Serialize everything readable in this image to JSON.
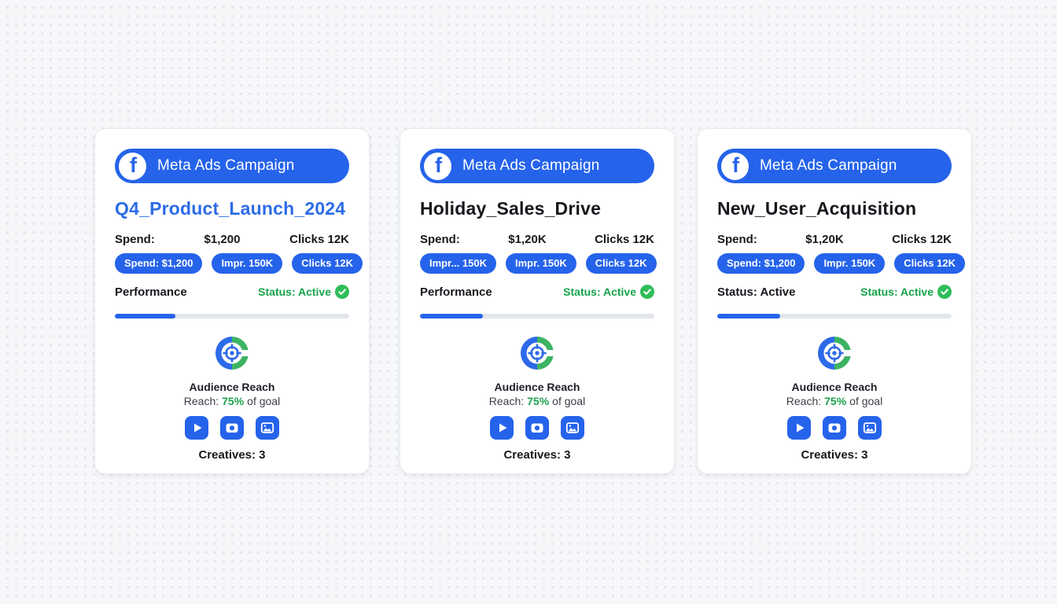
{
  "colors": {
    "accent_blue": "#2563eb",
    "title_blue": "#2c6be8",
    "status_green": "#16a34a",
    "check_green": "#2ebd59",
    "target_green": "#3cb363",
    "progress_track": "#e2e5ea",
    "page_background": "#f6f7f9"
  },
  "icons": {
    "facebook": "f glyph in white circle",
    "audience_target": "blue/green ring with crosshair",
    "play": "white triangle on blue rounded square",
    "camera": "white camera on blue rounded square",
    "image": "white picture frame on blue rounded square",
    "check": "white check in green circle"
  },
  "cards": [
    {
      "header_label": "Meta Ads Campaign",
      "title": "Q4_Product_Launch_2024",
      "stats_label": "Spend:",
      "stats_value": "$1,200",
      "stats_right": "Clicks 12K",
      "pills": [
        "Spend: $1,200",
        "Impr. 150K",
        "Clicks 12K"
      ],
      "row_left": "Performance",
      "status_text": "Status: Active",
      "progress_pct": 26,
      "reach_title": "Audience Reach",
      "reach_prefix": "Reach:",
      "reach_pct": "75%",
      "reach_suffix": "of goal",
      "creatives_label": "Creatives: 3"
    },
    {
      "header_label": "Meta Ads Campaign",
      "title": "Holiday_Sales_Drive",
      "stats_label": "Spend:",
      "stats_value": "$1,20K",
      "stats_right": "Clicks 12K",
      "pills": [
        "Impr... 150K",
        "Impr. 150K",
        "Clicks 12K"
      ],
      "row_left": "Performance",
      "status_text": "Status: Active",
      "progress_pct": 27,
      "reach_title": "Audience Reach",
      "reach_prefix": "Reach:",
      "reach_pct": "75%",
      "reach_suffix": "of goal",
      "creatives_label": "Creatives: 3"
    },
    {
      "header_label": "Meta Ads Campaign",
      "title": "New_User_Acquisition",
      "stats_label": "Spend:",
      "stats_value": "$1,20K",
      "stats_right": "Clicks 12K",
      "pills": [
        "Spend: $1,200",
        "Impr. 150K",
        "Clicks 12K"
      ],
      "row_left": "Status: Active",
      "status_text": "Status: Active",
      "progress_pct": 27,
      "reach_title": "Audience Reach",
      "reach_prefix": "Reach:",
      "reach_pct": "75%",
      "reach_suffix": "of goal",
      "creatives_label": "Creatives: 3"
    }
  ]
}
